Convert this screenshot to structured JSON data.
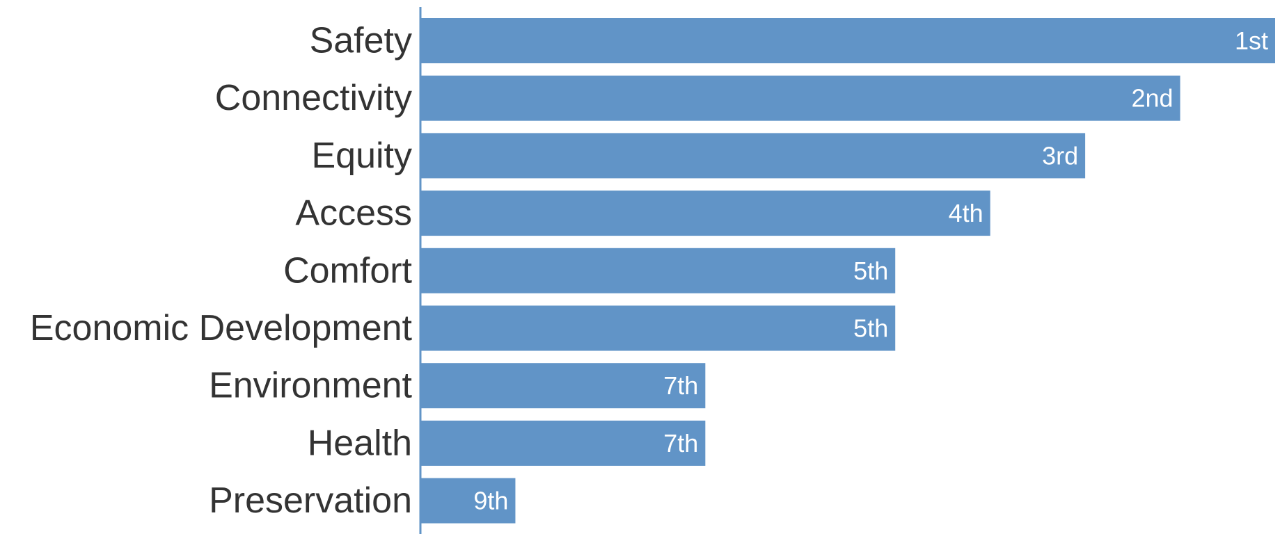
{
  "chart_data": {
    "type": "bar",
    "orientation": "horizontal",
    "categories": [
      "Safety",
      "Connectivity",
      "Equity",
      "Access",
      "Comfort",
      "Economic Development",
      "Environment",
      "Health",
      "Preservation"
    ],
    "values": [
      9,
      8,
      7,
      6,
      5,
      5,
      3,
      3,
      1
    ],
    "data_labels": [
      "1st",
      "2nd",
      "3rd",
      "4th",
      "5th",
      "5th",
      "7th",
      "7th",
      "9th"
    ],
    "xlim": [
      0,
      9
    ],
    "title": "",
    "xlabel": "",
    "ylabel": "",
    "grid": false,
    "legend": "none",
    "colors": {
      "bar": "#6194c7",
      "axis": "#6194c7",
      "category_text": "#333333",
      "value_text": "#ffffff"
    }
  }
}
